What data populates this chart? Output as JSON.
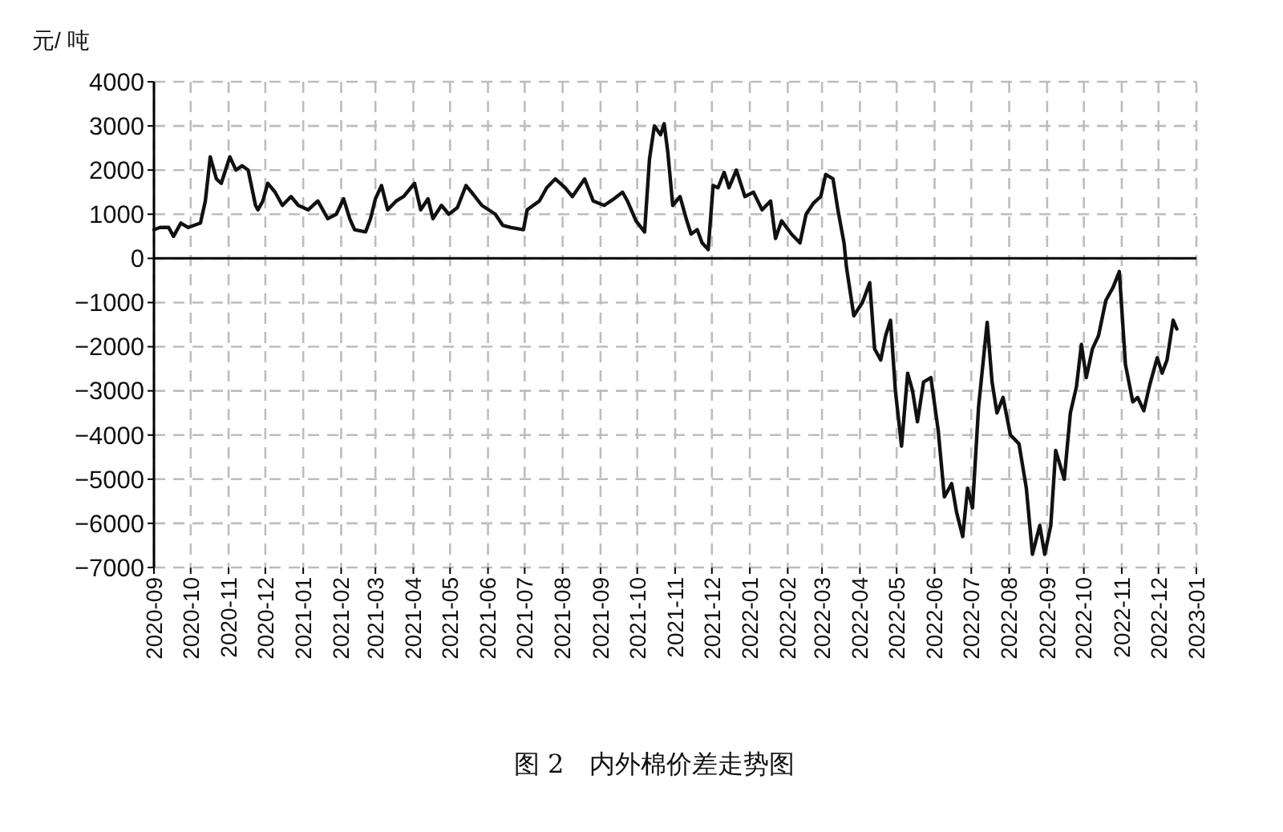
{
  "chart_data": {
    "type": "line",
    "title": "图 2　内外棉价差走势图",
    "ylabel": "元/ 吨",
    "x": [
      "2020-09-01",
      "2020-09-06",
      "2020-09-13",
      "2020-09-17",
      "2020-09-23",
      "2020-09-29",
      "2020-10-09",
      "2020-10-13",
      "2020-10-17",
      "2020-10-22",
      "2020-10-26",
      "2020-11-02",
      "2020-11-07",
      "2020-11-12",
      "2020-11-17",
      "2020-11-23",
      "2020-11-25",
      "2020-11-29",
      "2020-12-03",
      "2020-12-09",
      "2020-12-15",
      "2020-12-22",
      "2020-12-28",
      "2021-01-05",
      "2021-01-13",
      "2021-01-21",
      "2021-01-28",
      "2021-02-03",
      "2021-02-08",
      "2021-02-12",
      "2021-02-21",
      "2021-02-25",
      "2021-03-01",
      "2021-03-06",
      "2021-03-11",
      "2021-03-18",
      "2021-03-24",
      "2021-04-02",
      "2021-04-07",
      "2021-04-13",
      "2021-04-17",
      "2021-04-24",
      "2021-04-30",
      "2021-05-07",
      "2021-05-14",
      "2021-05-20",
      "2021-05-27",
      "2021-06-07",
      "2021-06-13",
      "2021-06-20",
      "2021-06-30",
      "2021-07-03",
      "2021-07-13",
      "2021-07-19",
      "2021-07-26",
      "2021-08-03",
      "2021-08-09",
      "2021-08-19",
      "2021-08-26",
      "2021-09-04",
      "2021-09-12",
      "2021-09-19",
      "2021-09-23",
      "2021-09-30",
      "2021-10-07",
      "2021-10-11",
      "2021-10-15",
      "2021-10-20",
      "2021-10-23",
      "2021-10-26",
      "2021-10-30",
      "2021-11-05",
      "2021-11-10",
      "2021-11-14",
      "2021-11-19",
      "2021-11-23",
      "2021-11-28",
      "2021-12-02",
      "2021-12-06",
      "2021-12-11",
      "2021-12-15",
      "2021-12-21",
      "2021-12-28",
      "2022-01-04",
      "2022-01-11",
      "2022-01-18",
      "2022-01-22",
      "2022-01-27",
      "2022-02-04",
      "2022-02-11",
      "2022-02-16",
      "2022-02-22",
      "2022-02-28",
      "2022-03-04",
      "2022-03-10",
      "2022-03-14",
      "2022-03-19",
      "2022-03-21",
      "2022-03-27",
      "2022-04-03",
      "2022-04-09",
      "2022-04-13",
      "2022-04-18",
      "2022-04-22",
      "2022-04-26",
      "2022-04-30",
      "2022-05-05",
      "2022-05-10",
      "2022-05-14",
      "2022-05-18",
      "2022-05-23",
      "2022-05-29",
      "2022-06-04",
      "2022-06-09",
      "2022-06-15",
      "2022-06-19",
      "2022-06-24",
      "2022-06-28",
      "2022-07-02",
      "2022-07-07",
      "2022-07-14",
      "2022-07-18",
      "2022-07-22",
      "2022-07-27",
      "2022-08-02",
      "2022-08-09",
      "2022-08-15",
      "2022-08-20",
      "2022-08-26",
      "2022-08-30",
      "2022-09-04",
      "2022-09-08",
      "2022-09-15",
      "2022-09-20",
      "2022-09-25",
      "2022-09-29",
      "2022-10-03",
      "2022-10-08",
      "2022-10-13",
      "2022-10-19",
      "2022-10-25",
      "2022-10-30",
      "2022-11-04",
      "2022-11-10",
      "2022-11-14",
      "2022-11-19",
      "2022-11-24",
      "2022-11-30",
      "2022-12-04",
      "2022-12-08",
      "2022-12-13",
      "2022-12-16"
    ],
    "series": [
      {
        "color": "#111111",
        "values": [
          650,
          700,
          700,
          500,
          800,
          700,
          800,
          1300,
          2300,
          1800,
          1700,
          2300,
          2000,
          2100,
          2000,
          1200,
          1100,
          1300,
          1700,
          1500,
          1200,
          1400,
          1200,
          1100,
          1300,
          900,
          1000,
          1350,
          900,
          650,
          600,
          900,
          1350,
          1650,
          1100,
          1300,
          1400,
          1700,
          1100,
          1350,
          900,
          1200,
          1000,
          1150,
          1650,
          1450,
          1200,
          1000,
          750,
          700,
          650,
          1100,
          1300,
          1600,
          1800,
          1600,
          1400,
          1800,
          1300,
          1200,
          1350,
          1500,
          1300,
          850,
          600,
          2250,
          3000,
          2800,
          3050,
          2400,
          1200,
          1400,
          900,
          550,
          650,
          350,
          200,
          1650,
          1600,
          1950,
          1600,
          2000,
          1400,
          1500,
          1100,
          1300,
          450,
          850,
          550,
          350,
          1000,
          1250,
          1400,
          1900,
          1800,
          1100,
          350,
          -200,
          -1300,
          -1000,
          -550,
          -2050,
          -2300,
          -1750,
          -1400,
          -3000,
          -4250,
          -2600,
          -3000,
          -3700,
          -2800,
          -2700,
          -3900,
          -5400,
          -5100,
          -5750,
          -6300,
          -5200,
          -5650,
          -3350,
          -1450,
          -2800,
          -3500,
          -3150,
          -4000,
          -4200,
          -5200,
          -6700,
          -6050,
          -6700,
          -6050,
          -4350,
          -5000,
          -3500,
          -2900,
          -1950,
          -2700,
          -2050,
          -1750,
          -950,
          -650,
          -300,
          -2400,
          -3250,
          -3150,
          -3450,
          -2850,
          -2250,
          -2600,
          -2300,
          -1400,
          -1600
        ]
      }
    ],
    "xlim": [
      "2020-09-01",
      "2023-01-01"
    ],
    "xticks": [
      "2020-09",
      "2020-10",
      "2020-11",
      "2020-12",
      "2021-01",
      "2021-02",
      "2021-03",
      "2021-04",
      "2021-05",
      "2021-06",
      "2021-07",
      "2021-08",
      "2021-09",
      "2021-10",
      "2021-11",
      "2021-12",
      "2022-01",
      "2022-02",
      "2022-03",
      "2022-04",
      "2022-05",
      "2022-06",
      "2022-07",
      "2022-08",
      "2022-09",
      "2022-10",
      "2022-11",
      "2022-12",
      "2023-01"
    ],
    "ylim": [
      -7000,
      4000
    ],
    "yticks": [
      -7000,
      -6000,
      -5000,
      -4000,
      -3000,
      -2000,
      -1000,
      0,
      1000,
      2000,
      3000,
      4000
    ],
    "grid": true,
    "line_style": "solid",
    "marker": "none",
    "ref_lines": [
      {
        "axis": "y",
        "value": 0,
        "color": "#000000"
      }
    ]
  }
}
